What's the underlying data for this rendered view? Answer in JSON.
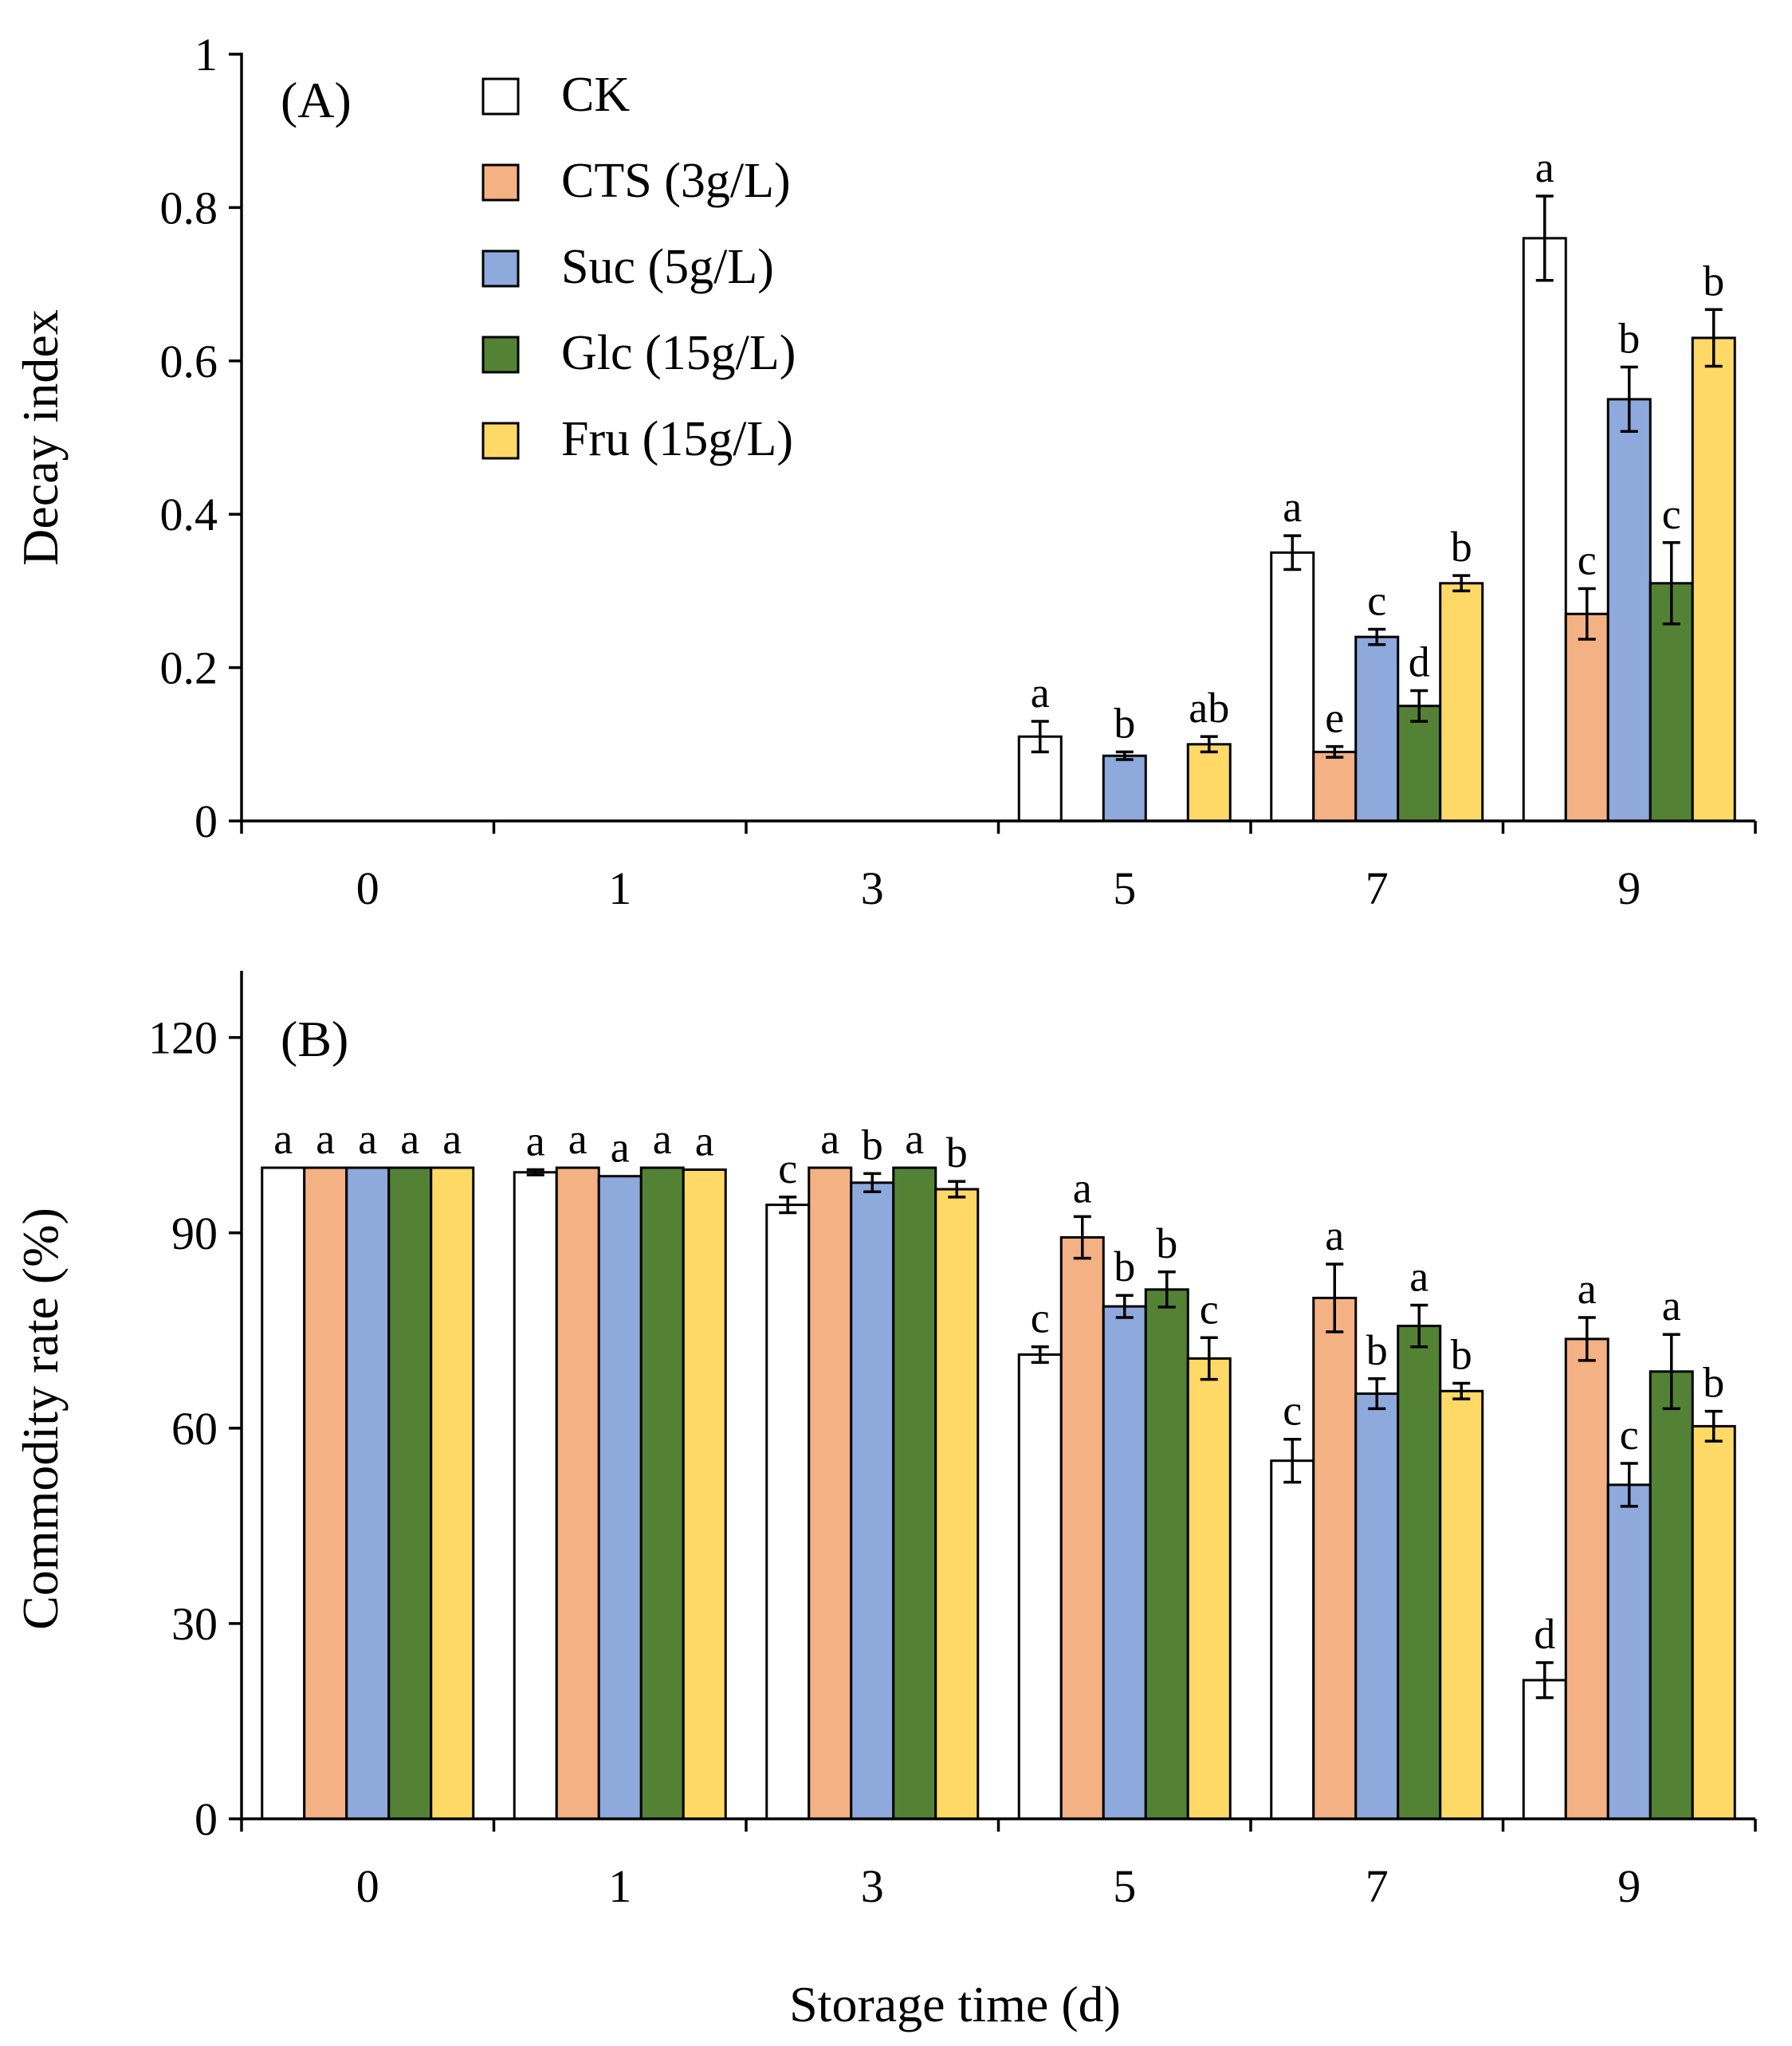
{
  "figure": {
    "x_axis_title": "Storage time (d)"
  },
  "legend": [
    {
      "key": "CK",
      "label": "CK",
      "color": "#FFFFFF"
    },
    {
      "key": "CTS",
      "label": "CTS (3g/L)",
      "color": "#F4B183"
    },
    {
      "key": "Suc",
      "label": "Suc (5g/L)",
      "color": "#8EA9DB"
    },
    {
      "key": "Glc",
      "label": "Glc (15g/L)",
      "color": "#548235"
    },
    {
      "key": "Fru",
      "label": "Fru (15g/L)",
      "color": "#FFD966"
    }
  ],
  "chart_data": [
    {
      "type": "bar",
      "panel": "(A)",
      "title": "",
      "xlabel": "",
      "ylabel": "Decay index",
      "ylim": [
        0,
        1
      ],
      "yticks": [
        0,
        0.2,
        0.4,
        0.6,
        0.8,
        1
      ],
      "ytick_labels": [
        "0",
        "0.2",
        "0.4",
        "0.6",
        "0.8",
        "1"
      ],
      "categories": [
        "0",
        "1",
        "3",
        "5",
        "7",
        "9"
      ],
      "legend_position": "top-left",
      "series": [
        {
          "name": "CK",
          "color": "#FFFFFF",
          "values": [
            0,
            0,
            0,
            0.11,
            0.35,
            0.76
          ],
          "errors": [
            0,
            0,
            0,
            0.02,
            0.022,
            0.055
          ],
          "labels": [
            "",
            "",
            "",
            "a",
            "a",
            "a"
          ]
        },
        {
          "name": "CTS (3g/L)",
          "color": "#F4B183",
          "values": [
            0,
            0,
            0,
            0,
            0.09,
            0.27
          ],
          "errors": [
            0,
            0,
            0,
            0,
            0.007,
            0.033
          ],
          "labels": [
            "",
            "",
            "",
            "",
            "e",
            "c"
          ]
        },
        {
          "name": "Suc (5g/L)",
          "color": "#8EA9DB",
          "values": [
            0,
            0,
            0,
            0.085,
            0.24,
            0.55
          ],
          "errors": [
            0,
            0,
            0,
            0.005,
            0.01,
            0.042
          ],
          "labels": [
            "",
            "",
            "",
            "b",
            "c",
            "b"
          ]
        },
        {
          "name": "Glc (15g/L)",
          "color": "#548235",
          "values": [
            0,
            0,
            0,
            0,
            0.15,
            0.31
          ],
          "errors": [
            0,
            0,
            0,
            0,
            0.02,
            0.053
          ],
          "labels": [
            "",
            "",
            "",
            "",
            "d",
            "c"
          ]
        },
        {
          "name": "Fru (15g/L)",
          "color": "#FFD966",
          "values": [
            0,
            0,
            0,
            0.1,
            0.31,
            0.63
          ],
          "errors": [
            0,
            0,
            0,
            0.01,
            0.01,
            0.037
          ],
          "labels": [
            "",
            "",
            "",
            "ab",
            "b",
            "b"
          ]
        }
      ]
    },
    {
      "type": "bar",
      "panel": "(B)",
      "title": "",
      "xlabel": "Storage time (d)",
      "ylabel": "Commodity rate (%)",
      "ylim": [
        0,
        130
      ],
      "yticks": [
        0,
        30,
        60,
        90,
        120
      ],
      "ytick_labels": [
        "0",
        "30",
        "60",
        "90",
        "120"
      ],
      "categories": [
        "0",
        "1",
        "3",
        "5",
        "7",
        "9"
      ],
      "series": [
        {
          "name": "CK",
          "color": "#FFFFFF",
          "values": [
            100,
            99.3,
            94.3,
            71.3,
            55,
            21.3
          ],
          "errors": [
            0,
            0.4,
            1.2,
            1.2,
            3.3,
            2.7
          ],
          "labels": [
            "a",
            "a",
            "c",
            "c",
            "c",
            "d"
          ]
        },
        {
          "name": "CTS (3g/L)",
          "color": "#F4B183",
          "values": [
            100,
            100,
            100,
            89.3,
            80,
            73.7
          ],
          "errors": [
            0,
            0,
            0,
            3.2,
            5.2,
            3.3
          ],
          "labels": [
            "a",
            "a",
            "a",
            "a",
            "a",
            "a"
          ]
        },
        {
          "name": "Suc (5g/L)",
          "color": "#8EA9DB",
          "values": [
            100,
            98.7,
            97.7,
            78.7,
            65.3,
            51.3
          ],
          "errors": [
            0,
            0,
            1.4,
            1.7,
            2.3,
            3.3
          ],
          "labels": [
            "a",
            "a",
            "b",
            "b",
            "b",
            "c"
          ]
        },
        {
          "name": "Glc (15g/L)",
          "color": "#548235",
          "values": [
            100,
            100,
            100,
            81.3,
            75.7,
            68.7
          ],
          "errors": [
            0,
            0,
            0,
            2.7,
            3.2,
            5.7
          ],
          "labels": [
            "a",
            "a",
            "a",
            "b",
            "a",
            "a"
          ]
        },
        {
          "name": "Fru (15g/L)",
          "color": "#FFD966",
          "values": [
            100,
            99.7,
            96.7,
            70.7,
            65.7,
            60.3
          ],
          "errors": [
            0,
            0,
            1.2,
            3.2,
            1.2,
            2.3
          ],
          "labels": [
            "a",
            "a",
            "b",
            "c",
            "b",
            "b"
          ]
        }
      ]
    }
  ]
}
